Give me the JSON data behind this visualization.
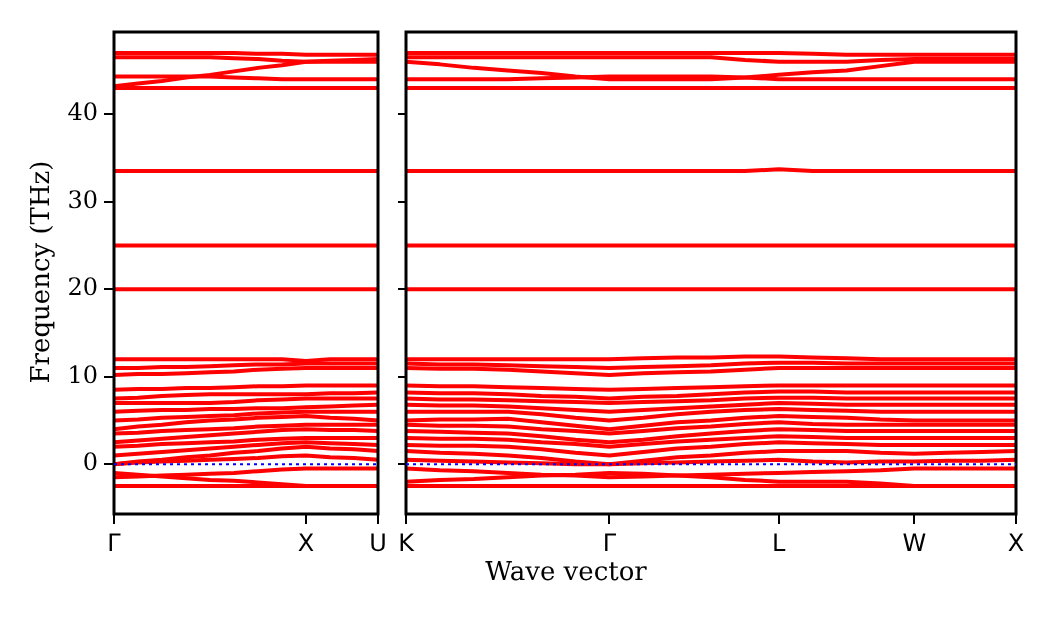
{
  "chart_data": [
    {
      "type": "line",
      "ylabel": "Frequency (THz)",
      "categories": [
        "Γ",
        null,
        null,
        null,
        null,
        null,
        null,
        null,
        "X",
        null,
        null,
        "U"
      ],
      "ylim": [
        -5.7,
        49.4
      ],
      "yticks": [
        0,
        10,
        20,
        30,
        40
      ],
      "marker": "none",
      "ref_lines": [
        {
          "axis": "y",
          "value": 0,
          "color": "#0000ff",
          "line_style": "dotted"
        }
      ],
      "series": [
        {
          "color": "#ff0000",
          "values": [
            -2.5,
            -2.5,
            -2.5,
            -2.5,
            -2.5,
            -2.5,
            -2.5,
            -2.5,
            -2.5,
            -2.5,
            -2.5,
            -2.5
          ]
        },
        {
          "color": "#ff0000",
          "values": [
            -1,
            -1.2,
            -1.4,
            -1.6,
            -1.8,
            -1.9,
            -2.1,
            -2.3,
            -2.5,
            -2.5,
            -2.5,
            -2.5
          ]
        },
        {
          "color": "#ff0000",
          "values": [
            -1.5,
            -1.4,
            -1.3,
            -1.2,
            -1.1,
            -1,
            -0.8,
            -0.6,
            -0.5,
            -0.5,
            -0.5,
            -0.5
          ]
        },
        {
          "color": "#ff0000",
          "values": [
            0,
            0.2,
            0.3,
            0.4,
            0.5,
            0.6,
            0.7,
            0.9,
            1,
            0.8,
            0.7,
            0.5
          ]
        },
        {
          "color": "#ff0000",
          "values": [
            0,
            0.3,
            0.5,
            0.8,
            1,
            1.3,
            1.5,
            1.8,
            2,
            1.8,
            1.7,
            1.5
          ]
        },
        {
          "color": "#ff0000",
          "values": [
            1,
            1.2,
            1.4,
            1.6,
            1.8,
            2,
            2.2,
            2.4,
            2.5,
            2.4,
            2.3,
            2.2
          ]
        },
        {
          "color": "#ff0000",
          "values": [
            2,
            2.1,
            2.3,
            2.4,
            2.5,
            2.6,
            2.8,
            2.9,
            3,
            3,
            3,
            3
          ]
        },
        {
          "color": "#ff0000",
          "values": [
            2.5,
            2.7,
            2.9,
            3.1,
            3.3,
            3.5,
            3.7,
            3.9,
            4,
            3.9,
            3.9,
            3.8
          ]
        },
        {
          "color": "#ff0000",
          "values": [
            3.5,
            3.6,
            3.8,
            3.9,
            4,
            4.1,
            4.3,
            4.4,
            4.5,
            4.5,
            4.5,
            4.5
          ]
        },
        {
          "color": "#ff0000",
          "values": [
            4,
            4.3,
            4.5,
            4.8,
            5,
            5.1,
            5.3,
            5.4,
            5.5,
            5.3,
            5.2,
            5
          ]
        },
        {
          "color": "#ff0000",
          "values": [
            5,
            5.1,
            5.3,
            5.4,
            5.5,
            5.6,
            5.8,
            5.9,
            6,
            6,
            6,
            6
          ]
        },
        {
          "color": "#ff0000",
          "values": [
            6,
            6.1,
            6.2,
            6.2,
            6.3,
            6.3,
            6.4,
            6.4,
            6.5,
            6.6,
            6.7,
            6.8
          ]
        },
        {
          "color": "#ff0000",
          "values": [
            7,
            7,
            7,
            7,
            7,
            7.1,
            7.3,
            7.4,
            7.5,
            7.5,
            7.5,
            7.5
          ]
        },
        {
          "color": "#ff0000",
          "values": [
            7.5,
            7.6,
            7.8,
            7.9,
            8,
            8,
            8,
            8,
            8,
            8.1,
            8.1,
            8.2
          ]
        },
        {
          "color": "#ff0000",
          "values": [
            8.5,
            8.6,
            8.6,
            8.7,
            8.7,
            8.8,
            8.9,
            8.9,
            9,
            9,
            9,
            9
          ]
        },
        {
          "color": "#ff0000",
          "values": [
            10.2,
            10.3,
            10.3,
            10.4,
            10.5,
            10.6,
            10.8,
            10.9,
            11,
            11,
            11,
            11
          ]
        },
        {
          "color": "#ff0000",
          "values": [
            11,
            11,
            11.1,
            11.1,
            11.2,
            11.3,
            11.4,
            11.4,
            11.5,
            11.5,
            11.5,
            11.5
          ]
        },
        {
          "color": "#ff0000",
          "values": [
            12,
            12,
            12,
            12,
            12,
            12,
            12,
            12,
            11.8,
            12,
            12,
            12
          ]
        },
        {
          "color": "#ff0000",
          "values": [
            20,
            20,
            20,
            20,
            20,
            20,
            20,
            20,
            20,
            20,
            20,
            20
          ]
        },
        {
          "color": "#ff0000",
          "values": [
            25,
            25,
            25,
            25,
            25,
            25,
            25,
            25,
            25,
            25,
            25,
            25
          ]
        },
        {
          "color": "#ff0000",
          "values": [
            33.5,
            33.5,
            33.5,
            33.5,
            33.5,
            33.5,
            33.5,
            33.5,
            33.5,
            33.5,
            33.5,
            33.5
          ]
        },
        {
          "color": "#ff0000",
          "values": [
            43,
            43,
            43,
            43,
            43,
            43,
            43,
            43,
            43,
            43,
            43,
            43
          ]
        },
        {
          "color": "#ff0000",
          "values": [
            44.3,
            44.3,
            44.3,
            44.3,
            44.3,
            44.2,
            44.1,
            44,
            44,
            44,
            44,
            44
          ]
        },
        {
          "color": "#ff0000",
          "values": [
            43.2,
            43.5,
            43.8,
            44.2,
            44.5,
            44.9,
            45.3,
            45.6,
            46,
            46.1,
            46.2,
            46.3
          ]
        },
        {
          "color": "#ff0000",
          "values": [
            46.5,
            46.5,
            46.5,
            46.5,
            46.5,
            46.4,
            46.3,
            46.1,
            46,
            46,
            46,
            46
          ]
        },
        {
          "color": "#ff0000",
          "values": [
            47,
            47,
            47,
            47,
            47,
            47,
            46.9,
            46.9,
            46.8,
            46.8,
            46.8,
            46.8
          ]
        }
      ]
    },
    {
      "type": "line",
      "xlabel": "Wave vector",
      "categories": [
        "K",
        null,
        null,
        null,
        null,
        null,
        "Γ",
        null,
        null,
        null,
        null,
        "L",
        null,
        null,
        null,
        "W",
        null,
        null,
        "X"
      ],
      "ylim": [
        -5.7,
        49.4
      ],
      "yticks": [
        0,
        10,
        20,
        30,
        40
      ],
      "tick_labels": "x",
      "marker": "none",
      "ref_lines": [
        {
          "axis": "y",
          "value": 0,
          "color": "#0000ff",
          "line_style": "dotted"
        }
      ],
      "series": [
        {
          "color": "#ff0000",
          "values": [
            -2.5,
            -2.5,
            -2.5,
            -2.5,
            -2.5,
            -2.5,
            -2.5,
            -2.5,
            -2.5,
            -2.5,
            -2.5,
            -2.5,
            -2.5,
            -2.5,
            -2.5,
            -2.5,
            -2.5,
            -2.5,
            -2.5
          ]
        },
        {
          "color": "#ff0000",
          "values": [
            -2,
            -1.8,
            -1.7,
            -1.5,
            -1.3,
            -1.2,
            -1,
            -1.1,
            -1.3,
            -1.5,
            -1.8,
            -2,
            -2,
            -2,
            -2.2,
            -2.5,
            -2.5,
            -2.5,
            -2.5
          ]
        },
        {
          "color": "#ff0000",
          "values": [
            -0.5,
            -0.7,
            -0.8,
            -1,
            -1.2,
            -1.3,
            -1.5,
            -1.4,
            -1.3,
            -1.2,
            -1.1,
            -1,
            -0.9,
            -0.8,
            -0.7,
            -0.5,
            -0.5,
            -0.5,
            -0.5
          ]
        },
        {
          "color": "#ff0000",
          "values": [
            0.5,
            0.4,
            0.3,
            0.2,
            0.1,
            0,
            0,
            0.1,
            0.2,
            0.3,
            0.4,
            0.5,
            0.3,
            0.2,
            0.3,
            0.3,
            0.4,
            0.4,
            0.5
          ]
        },
        {
          "color": "#ff0000",
          "values": [
            1.5,
            1.3,
            1.2,
            1,
            0.7,
            0.3,
            0,
            0.4,
            0.8,
            1,
            1.3,
            1.5,
            1.5,
            1.5,
            1.3,
            1.2,
            1.3,
            1.4,
            1.5
          ]
        },
        {
          "color": "#ff0000",
          "values": [
            2.2,
            2.1,
            2.1,
            2,
            1.7,
            1.3,
            1,
            1.4,
            1.8,
            2,
            2.3,
            2.5,
            2.4,
            2.3,
            2.2,
            2.2,
            2.2,
            2.2,
            2.2
          ]
        },
        {
          "color": "#ff0000",
          "values": [
            3,
            2.9,
            2.9,
            2.8,
            2.5,
            2.3,
            2,
            2.3,
            2.6,
            2.8,
            3,
            3.2,
            3.1,
            3,
            3,
            3,
            3,
            3,
            3
          ]
        },
        {
          "color": "#ff0000",
          "values": [
            3.8,
            3.7,
            3.6,
            3.5,
            3.2,
            2.8,
            2.5,
            2.8,
            3.2,
            3.5,
            3.8,
            4,
            3.9,
            3.8,
            3.8,
            3.8,
            3.8,
            3.8,
            3.8
          ]
        },
        {
          "color": "#ff0000",
          "values": [
            4.5,
            4.4,
            4.4,
            4.3,
            4,
            3.8,
            3.5,
            3.8,
            4.1,
            4.3,
            4.6,
            4.8,
            4.6,
            4.5,
            4.5,
            4.5,
            4.5,
            4.5,
            4.5
          ]
        },
        {
          "color": "#ff0000",
          "values": [
            5,
            5.1,
            5.1,
            5.2,
            4.8,
            4.4,
            4,
            4.4,
            4.8,
            5,
            5.3,
            5.5,
            5.4,
            5.3,
            5.1,
            5,
            5,
            5,
            5
          ]
        },
        {
          "color": "#ff0000",
          "values": [
            6,
            6,
            6,
            6,
            5.7,
            5.3,
            5,
            5.3,
            5.7,
            6,
            6.2,
            6.3,
            6.2,
            6.1,
            6,
            6,
            6,
            6,
            6
          ]
        },
        {
          "color": "#ff0000",
          "values": [
            6.8,
            6.7,
            6.7,
            6.6,
            6.4,
            6.2,
            6,
            6.2,
            6.4,
            6.6,
            6.8,
            7,
            6.9,
            6.8,
            6.8,
            6.8,
            6.8,
            6.8,
            6.8
          ]
        },
        {
          "color": "#ff0000",
          "values": [
            7.5,
            7.4,
            7.4,
            7.3,
            7.2,
            7.1,
            7,
            7.1,
            7.2,
            7.3,
            7.5,
            7.6,
            7.6,
            7.5,
            7.5,
            7.5,
            7.5,
            7.5,
            7.5
          ]
        },
        {
          "color": "#ff0000",
          "values": [
            8.2,
            8.1,
            8.1,
            8,
            7.8,
            7.7,
            7.5,
            7.7,
            7.8,
            8,
            8.2,
            8.3,
            8.3,
            8.2,
            8.2,
            8.2,
            8.2,
            8.2,
            8.2
          ]
        },
        {
          "color": "#ff0000",
          "values": [
            9,
            8.9,
            8.9,
            8.8,
            8.7,
            8.6,
            8.5,
            8.6,
            8.7,
            8.8,
            8.9,
            9,
            9,
            9,
            9,
            9,
            9,
            9,
            9
          ]
        },
        {
          "color": "#ff0000",
          "values": [
            11,
            10.9,
            10.9,
            10.8,
            10.6,
            10.4,
            10.2,
            10.4,
            10.5,
            10.6,
            10.8,
            11,
            11,
            11,
            11,
            11,
            11,
            11,
            11
          ]
        },
        {
          "color": "#ff0000",
          "values": [
            11.5,
            11.4,
            11.4,
            11.3,
            11.2,
            11.1,
            11,
            11.1,
            11.2,
            11.3,
            11.5,
            11.6,
            11.6,
            11.5,
            11.5,
            11.5,
            11.5,
            11.5,
            11.5
          ]
        },
        {
          "color": "#ff0000",
          "values": [
            12,
            12,
            12,
            12,
            12,
            12,
            12,
            12.1,
            12.2,
            12.2,
            12.3,
            12.3,
            12.2,
            12.1,
            12,
            12,
            12,
            12,
            12
          ]
        },
        {
          "color": "#ff0000",
          "values": [
            20,
            20,
            20,
            20,
            20,
            20,
            20,
            20,
            20,
            20,
            20,
            20,
            20,
            20,
            20,
            20,
            20,
            20,
            20
          ]
        },
        {
          "color": "#ff0000",
          "values": [
            25,
            25,
            25,
            25,
            25,
            25,
            25,
            25,
            25,
            25,
            25,
            25,
            25,
            25,
            25,
            25,
            25,
            25,
            25
          ]
        },
        {
          "color": "#ff0000",
          "values": [
            33.5,
            33.5,
            33.5,
            33.5,
            33.5,
            33.5,
            33.5,
            33.5,
            33.5,
            33.5,
            33.5,
            33.7,
            33.5,
            33.5,
            33.5,
            33.5,
            33.5,
            33.5,
            33.5
          ]
        },
        {
          "color": "#ff0000",
          "values": [
            43,
            43,
            43,
            43,
            43,
            43,
            43,
            43,
            43,
            43,
            43,
            43,
            43,
            43,
            43,
            43,
            43,
            43,
            43
          ]
        },
        {
          "color": "#ff0000",
          "values": [
            44,
            44,
            44,
            44,
            44.1,
            44.2,
            44.3,
            44.3,
            44.3,
            44.3,
            44.2,
            44,
            44,
            44,
            44,
            44,
            44,
            44,
            44
          ]
        },
        {
          "color": "#ff0000",
          "values": [
            46,
            45.7,
            45.3,
            45,
            44.7,
            44.3,
            44,
            44,
            44,
            44,
            44.2,
            44.5,
            44.8,
            45,
            45.5,
            46,
            46,
            46,
            46
          ]
        },
        {
          "color": "#ff0000",
          "values": [
            46.5,
            46.5,
            46.5,
            46.5,
            46.5,
            46.5,
            46.5,
            46.5,
            46.5,
            46.5,
            46.2,
            46,
            46,
            46,
            46.2,
            46.3,
            46.3,
            46.3,
            46.3
          ]
        },
        {
          "color": "#ff0000",
          "values": [
            47,
            47,
            47,
            47,
            47,
            47,
            47,
            47,
            47,
            47,
            47,
            47,
            46.9,
            46.8,
            46.8,
            46.8,
            46.8,
            46.8,
            46.8
          ]
        }
      ]
    }
  ]
}
